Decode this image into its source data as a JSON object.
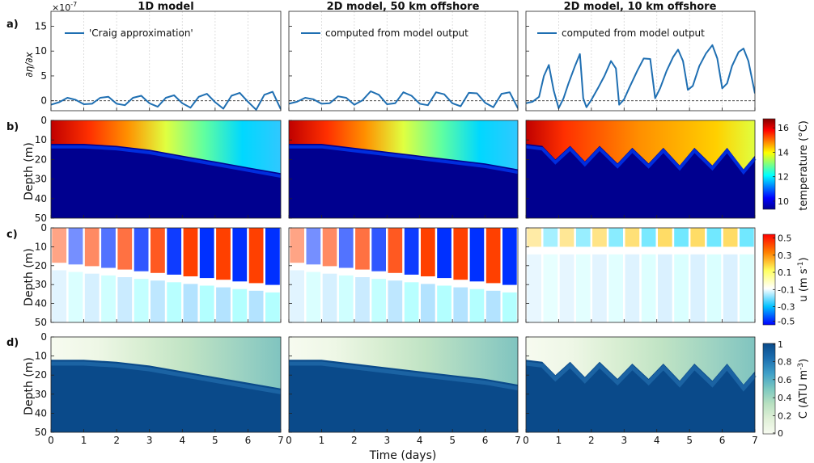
{
  "colors": {
    "line": "#1f6fb2",
    "jet": [
      "#00008f",
      "#0000ff",
      "#0080ff",
      "#00ffff",
      "#80ff80",
      "#ffff00",
      "#ff8000",
      "#ff0000",
      "#800000"
    ],
    "blues": [
      "#f7fbf0",
      "#e0f0d8",
      "#b8e0c0",
      "#7cc8c0",
      "#3fa0c8",
      "#1c6fb0",
      "#0a4a8a"
    ]
  },
  "figure": {
    "x_axis_label": "Time (days)",
    "x_ticks": [
      "0",
      "1",
      "2",
      "3",
      "4",
      "5",
      "6",
      "7"
    ],
    "depth_label": "Depth (m)",
    "depth_ticks": [
      "0",
      "10",
      "20",
      "30",
      "40",
      "50"
    ],
    "a_ylabel": "∂η/∂x",
    "a_exponent": "×10",
    "a_exponent_power": "-7",
    "a_yticks": [
      "0",
      "5",
      "10",
      "15"
    ]
  },
  "column_titles": [
    "1D model",
    "2D model, 50 km offshore",
    "2D model, 10 km offshore"
  ],
  "row_labels": [
    "a)",
    "b)",
    "c)",
    "d)"
  ],
  "legends": [
    "'Craig approximation'",
    "computed from model output",
    "computed from model output"
  ],
  "colorbars": {
    "temperature": {
      "label": "temperature (°C)",
      "ticks": [
        "16",
        "14",
        "12",
        "10"
      ]
    },
    "u": {
      "label": "u (m s",
      "label_sup": "-1",
      "label_end": ")",
      "ticks": [
        "0.5",
        "0.3",
        "0.1",
        "-0.1",
        "-0.3",
        "-0.5"
      ]
    },
    "c": {
      "label": "C (ATU m",
      "label_sup": "-3",
      "label_end": ")",
      "ticks": [
        "1",
        "0.8",
        "0.6",
        "0.4",
        "0.2",
        "0"
      ]
    }
  },
  "chart_data": [
    {
      "type": "line",
      "title": "1D model",
      "ylabel": "∂η/∂x",
      "xlabel": "",
      "xlim": [
        0,
        7
      ],
      "ylim": [
        -2,
        18
      ],
      "y_scale_factor": "1e-7",
      "series": [
        {
          "name": "'Craig approximation'",
          "x": [
            0,
            0.25,
            0.5,
            0.75,
            1.0,
            1.25,
            1.5,
            1.75,
            2.0,
            2.25,
            2.5,
            2.75,
            3.0,
            3.25,
            3.5,
            3.75,
            4.0,
            4.25,
            4.5,
            4.75,
            5.0,
            5.25,
            5.5,
            5.75,
            6.0,
            6.25,
            6.5,
            6.75,
            7.0
          ],
          "y": [
            -0.8,
            -0.3,
            0.6,
            0.2,
            -0.7,
            -0.6,
            0.6,
            0.8,
            -0.6,
            -0.9,
            0.6,
            1.0,
            -0.5,
            -1.2,
            0.6,
            1.1,
            -0.5,
            -1.4,
            0.8,
            1.4,
            -0.3,
            -1.6,
            1.0,
            1.6,
            -0.2,
            -1.8,
            1.2,
            1.8,
            -1.7
          ]
        }
      ]
    },
    {
      "type": "line",
      "title": "2D model, 50 km offshore",
      "ylabel": "",
      "xlabel": "",
      "xlim": [
        0,
        7
      ],
      "ylim": [
        -2,
        18
      ],
      "y_scale_factor": "1e-7",
      "series": [
        {
          "name": "computed from model output",
          "x": [
            0,
            0.25,
            0.5,
            0.75,
            1.0,
            1.25,
            1.5,
            1.75,
            2.0,
            2.25,
            2.5,
            2.75,
            3.0,
            3.25,
            3.5,
            3.75,
            4.0,
            4.25,
            4.5,
            4.75,
            5.0,
            5.25,
            5.5,
            5.75,
            6.0,
            6.25,
            6.5,
            6.75,
            7.0
          ],
          "y": [
            -0.6,
            -0.2,
            0.6,
            0.3,
            -0.6,
            -0.5,
            0.9,
            0.6,
            -0.8,
            0.1,
            1.9,
            1.2,
            -0.7,
            -0.5,
            1.7,
            1.0,
            -0.6,
            -0.9,
            1.7,
            1.3,
            -0.5,
            -1.1,
            1.6,
            1.5,
            -0.4,
            -1.3,
            1.4,
            1.7,
            -1.5
          ]
        }
      ]
    },
    {
      "type": "line",
      "title": "2D model, 10 km offshore",
      "ylabel": "",
      "xlabel": "",
      "xlim": [
        0,
        7
      ],
      "ylim": [
        -2,
        18
      ],
      "y_scale_factor": "1e-7",
      "series": [
        {
          "name": "computed from model output",
          "x": [
            0,
            0.2,
            0.4,
            0.55,
            0.7,
            0.85,
            1.0,
            1.15,
            1.3,
            1.5,
            1.65,
            1.75,
            1.85,
            2.0,
            2.2,
            2.4,
            2.6,
            2.75,
            2.85,
            3.0,
            3.15,
            3.4,
            3.6,
            3.8,
            3.95,
            4.1,
            4.3,
            4.5,
            4.65,
            4.8,
            4.95,
            5.1,
            5.3,
            5.5,
            5.7,
            5.85,
            6.0,
            6.15,
            6.3,
            6.5,
            6.65,
            6.8,
            7.0
          ],
          "y": [
            -0.5,
            -0.2,
            0.8,
            5.0,
            7.2,
            2.0,
            -1.5,
            0.5,
            3.5,
            7.0,
            9.4,
            0.5,
            -1.3,
            0.2,
            2.5,
            5.0,
            8.0,
            6.5,
            -0.8,
            0.3,
            2.5,
            6.0,
            8.5,
            8.4,
            0.5,
            2.5,
            6.0,
            8.8,
            10.3,
            8.0,
            2.2,
            3.0,
            7.0,
            9.5,
            11.2,
            8.5,
            2.5,
            3.5,
            7.0,
            9.8,
            10.5,
            8.0,
            1.5
          ]
        }
      ]
    },
    {
      "type": "heatmap",
      "title": "",
      "ylabel": "Depth (m)",
      "xlabel": "",
      "xlim": [
        0,
        7
      ],
      "ylim": [
        50,
        0
      ],
      "colorbar": {
        "label": "temperature (°C)",
        "range": [
          10,
          16
        ]
      },
      "panels": [
        {
          "column": "1D model",
          "surface_temp": 16,
          "thermocline_depth": {
            "x": [
              0,
              1,
              2,
              3,
              4,
              5,
              6,
              7
            ],
            "y": [
              12,
              12,
              13,
              15,
              18,
              21,
              24,
              27
            ]
          }
        },
        {
          "column": "2D model, 50 km offshore",
          "surface_temp": 16,
          "thermocline_depth": {
            "x": [
              0,
              1,
              2,
              3,
              4,
              5,
              6,
              7
            ],
            "y": [
              12,
              12,
              14,
              16,
              18,
              20,
              22,
              25
            ]
          }
        },
        {
          "column": "2D model, 10 km offshore",
          "surface_temp": 16,
          "thermocline_depth": {
            "x": [
              0,
              0.5,
              0.9,
              1.35,
              1.8,
              2.25,
              2.8,
              3.25,
              3.75,
              4.2,
              4.7,
              5.15,
              5.7,
              6.15,
              6.65,
              7.0
            ],
            "y": [
              12,
              13,
              20,
              13,
              21,
              13,
              22,
              14,
              22,
              14,
              23,
              14,
              23,
              14,
              25,
              18
            ]
          }
        }
      ]
    },
    {
      "type": "heatmap",
      "title": "",
      "ylabel": "Depth (m)",
      "xlabel": "",
      "xlim": [
        0,
        7
      ],
      "ylim": [
        50,
        0
      ],
      "colorbar": {
        "label": "u (m s-1)",
        "range": [
          -0.5,
          0.5
        ]
      },
      "panels": [
        {
          "column": "1D model",
          "amplitude": 0.5,
          "period_days": 0.5
        },
        {
          "column": "2D model, 50 km offshore",
          "amplitude": 0.5,
          "period_days": 0.5
        },
        {
          "column": "2D model, 10 km offshore",
          "amplitude": 0.3,
          "period_days": 0.5
        }
      ]
    },
    {
      "type": "heatmap",
      "title": "",
      "ylabel": "Depth (m)",
      "xlabel": "Time (days)",
      "xlim": [
        0,
        7
      ],
      "ylim": [
        50,
        0
      ],
      "colorbar": {
        "label": "C (ATU m-3)",
        "range": [
          0,
          1
        ]
      },
      "panels": [
        {
          "column": "1D model",
          "bottom_value": 1.0,
          "surface_value": 0.1
        },
        {
          "column": "2D model, 50 km offshore",
          "bottom_value": 1.0,
          "surface_value": 0.1
        },
        {
          "column": "2D model, 10 km offshore",
          "bottom_value": 1.0,
          "surface_value": 0.1
        }
      ]
    }
  ]
}
